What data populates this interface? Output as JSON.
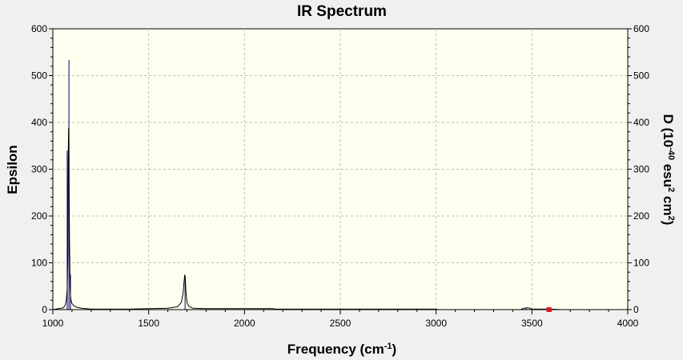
{
  "chart_data": {
    "type": "line",
    "title": "IR Spectrum",
    "xlabel": {
      "base": "Frequency (cm",
      "sup": "-1",
      "tail": ")"
    },
    "ylabel_left": "Epsilon",
    "ylabel_right": {
      "a": "D (10",
      "sup1": "-40",
      "b": " esu",
      "sup2": "2",
      "c": " cm",
      "sup3": "2",
      "d": ")"
    },
    "xlim": [
      1000,
      4000
    ],
    "ylim": [
      0,
      600
    ],
    "x_ticks": [
      "1000",
      "1500",
      "2000",
      "2500",
      "3000",
      "3500",
      "4000"
    ],
    "x_tick_values": [
      1000,
      1500,
      2000,
      2500,
      3000,
      3500,
      4000
    ],
    "y_ticks": [
      "0",
      "100",
      "200",
      "300",
      "400",
      "500",
      "600"
    ],
    "y_tick_values": [
      0,
      100,
      200,
      300,
      400,
      500,
      600
    ],
    "grid": true,
    "colors": {
      "plot_background": "#ffffef",
      "grid": "#bdbdbd",
      "spectrum_line": "#000000",
      "stick": "#000080",
      "marker": "#e8131a",
      "frame_background": "#f0f0f0"
    },
    "spectrum": {
      "x": [
        1000,
        1055,
        1065,
        1070,
        1075,
        1078,
        1080,
        1082,
        1083,
        1084,
        1085,
        1087,
        1088,
        1089,
        1090,
        1092,
        1095,
        1100,
        1110,
        1125,
        1150,
        1200,
        1400,
        1600,
        1650,
        1670,
        1680,
        1685,
        1688,
        1690,
        1692,
        1695,
        1700,
        1710,
        1730,
        1800,
        2000,
        2150,
        2160,
        2500,
        3000,
        3010,
        3440,
        3460,
        3475,
        3490,
        3500,
        3600,
        3650
      ],
      "y": [
        0,
        4,
        10,
        20,
        45,
        120,
        300,
        385,
        388,
        350,
        260,
        150,
        110,
        75,
        50,
        30,
        20,
        13,
        8,
        5,
        3,
        1,
        1,
        3,
        6,
        15,
        35,
        60,
        74,
        73,
        60,
        35,
        15,
        7,
        3,
        2,
        2,
        2,
        1,
        1,
        1,
        0,
        0,
        3,
        4,
        3,
        1,
        1,
        0
      ]
    },
    "sticks": [
      {
        "x": 1075,
        "d": 340
      },
      {
        "x": 1084,
        "d": 533
      },
      {
        "x": 1092,
        "d": 75
      },
      {
        "x": 1690,
        "d": 68
      },
      {
        "x": 3470,
        "d": 3
      },
      {
        "x": 3589,
        "d": 1
      }
    ],
    "marker": {
      "x": 3589,
      "y": 0
    }
  }
}
